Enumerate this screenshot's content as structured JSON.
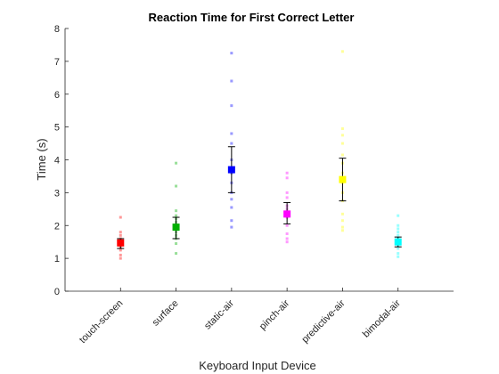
{
  "chart_data": {
    "type": "scatter",
    "title": "Reaction Time for First Correct Letter",
    "xlabel": "Keyboard Input Device",
    "ylabel": "Time (s)",
    "ylim": [
      0,
      8
    ],
    "yticks": [
      "0",
      "1",
      "2",
      "3",
      "4",
      "5",
      "6",
      "7",
      "8"
    ],
    "grid": false,
    "categories": [
      "touch-screen",
      "surface",
      "static-air",
      "pinch-air",
      "predictive-air",
      "bimodal-air"
    ],
    "series": [
      {
        "color": "#ff0000",
        "points": [
          1.0,
          1.1,
          1.25,
          1.35,
          1.4,
          1.5,
          1.55,
          1.6,
          1.7,
          1.8,
          2.25
        ],
        "mean": 1.47,
        "err_low": 1.3,
        "err_high": 1.6
      },
      {
        "color": "#00b000",
        "points": [
          1.15,
          1.45,
          1.6,
          1.7,
          1.8,
          1.9,
          2.0,
          2.1,
          2.2,
          2.3,
          2.45,
          3.2,
          3.9
        ],
        "mean": 1.95,
        "err_low": 1.6,
        "err_high": 2.25
      },
      {
        "color": "#0000ff",
        "points": [
          1.95,
          2.15,
          2.55,
          2.8,
          3.0,
          3.3,
          3.6,
          4.0,
          4.5,
          4.8,
          5.65,
          6.4,
          7.25
        ],
        "mean": 3.7,
        "err_low": 3.0,
        "err_high": 4.4
      },
      {
        "color": "#ff00ff",
        "points": [
          1.5,
          1.6,
          1.75,
          2.0,
          2.25,
          2.5,
          2.6,
          2.85,
          3.0,
          3.45,
          3.6
        ],
        "mean": 2.35,
        "err_low": 2.05,
        "err_high": 2.7
      },
      {
        "color": "#ffff00",
        "points": [
          1.85,
          1.95,
          2.15,
          2.35,
          2.75,
          3.0,
          3.3,
          3.6,
          3.9,
          4.15,
          4.5,
          4.75,
          4.95,
          7.3
        ],
        "mean": 3.4,
        "err_low": 2.75,
        "err_high": 4.05
      },
      {
        "color": "#00ffff",
        "points": [
          1.05,
          1.15,
          1.3,
          1.4,
          1.5,
          1.6,
          1.7,
          1.8,
          1.9,
          2.0,
          2.3
        ],
        "mean": 1.5,
        "err_low": 1.35,
        "err_high": 1.65
      }
    ]
  }
}
